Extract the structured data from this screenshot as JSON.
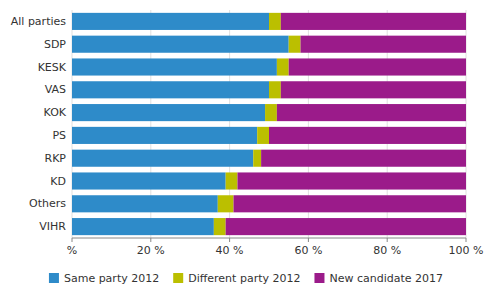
{
  "chart_data": {
    "type": "bar",
    "orientation": "horizontal",
    "stacked": true,
    "categories": [
      "All parties",
      "SDP",
      "KESK",
      "VAS",
      "KOK",
      "PS",
      "RKP",
      "KD",
      "Others",
      "VIHR"
    ],
    "series": [
      {
        "name": "Same party 2012",
        "color": "#2E8BC9",
        "values": [
          50,
          55,
          52,
          50,
          49,
          47,
          46,
          39,
          37,
          36
        ]
      },
      {
        "name": "Different party 2012",
        "color": "#BBBF00",
        "values": [
          3,
          3,
          3,
          3,
          3,
          3,
          2,
          3,
          4,
          3
        ]
      },
      {
        "name": "New candidate 2017",
        "color": "#9B1B8A",
        "values": [
          47,
          42,
          45,
          47,
          48,
          50,
          52,
          58,
          59,
          61
        ]
      }
    ],
    "xlim": [
      0,
      100
    ],
    "xticks": [
      {
        "value": 0,
        "label": "%"
      },
      {
        "value": 20,
        "label": "20 %"
      },
      {
        "value": 40,
        "label": "40 %"
      },
      {
        "value": 60,
        "label": "60 %"
      },
      {
        "value": 80,
        "label": "80 %"
      },
      {
        "value": 100,
        "label": "100 %"
      }
    ],
    "grid": true,
    "legend": "bottom"
  }
}
